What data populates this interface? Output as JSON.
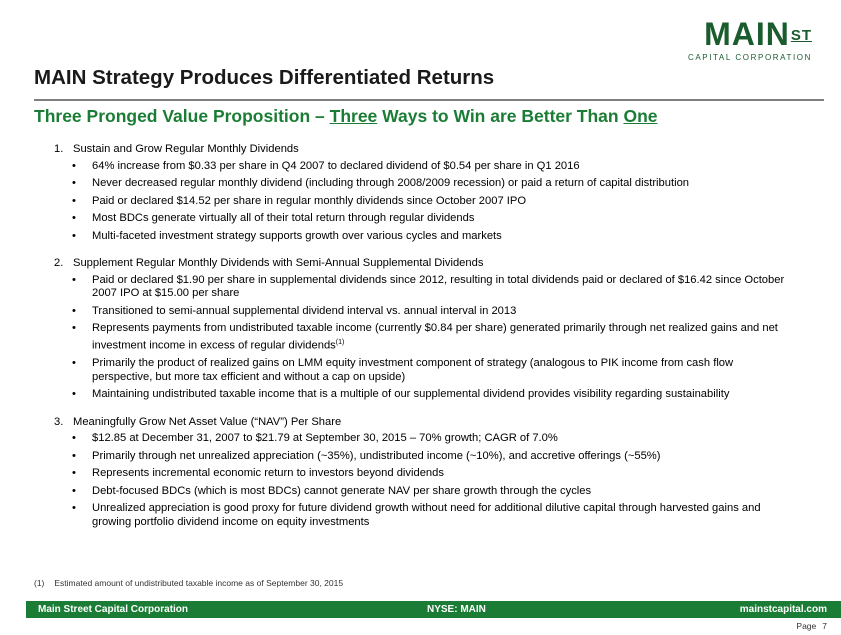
{
  "logo": {
    "main": "MAIN",
    "st": "ST",
    "sub": "CAPITAL CORPORATION"
  },
  "title": "MAIN Strategy Produces Differentiated Returns",
  "subtitle": {
    "part1": "Three Pronged Value Proposition – ",
    "emph1": "Three",
    "part2": " Ways to Win are Better Than ",
    "emph2": "One"
  },
  "sections": [
    {
      "num": "1.",
      "heading": "Sustain and Grow Regular Monthly Dividends",
      "bullets": [
        "64% increase from $0.33 per share in Q4 2007 to declared dividend of $0.54 per share in Q1 2016",
        "Never decreased regular monthly dividend (including through 2008/2009 recession) or paid a return of capital distribution",
        "Paid or declared $14.52 per share in regular monthly dividends since October 2007 IPO",
        "Most BDCs generate virtually all of their total return through regular dividends",
        "Multi-faceted investment strategy supports growth over various cycles and markets"
      ]
    },
    {
      "num": "2.",
      "heading": "Supplement Regular Monthly Dividends with Semi-Annual Supplemental Dividends",
      "bullets": [
        "Paid or declared $1.90 per share in supplemental dividends since 2012, resulting in total dividends paid or declared of $16.42 since October 2007 IPO at $15.00 per share",
        "Transitioned to semi-annual supplemental dividend interval vs. annual interval in 2013",
        "Represents payments from undistributed taxable income (currently $0.84 per share) generated primarily through net realized gains and net investment income in excess of regular dividends",
        "Primarily the product of realized gains on LMM equity investment component of strategy (analogous to PIK income from cash flow perspective, but more tax efficient and without a cap on upside)",
        "Maintaining undistributed taxable income that is a multiple of our supplemental dividend provides visibility regarding sustainability"
      ],
      "bullet3_sup": "(1)"
    },
    {
      "num": "3.",
      "heading": "Meaningfully Grow Net Asset Value (“NAV”) Per Share",
      "bullets": [
        "$12.85 at December 31, 2007 to $21.79 at September 30, 2015 – 70% growth; CAGR of 7.0%",
        "Primarily through net unrealized appreciation (~35%), undistributed income (~10%), and accretive offerings (~55%)",
        "Represents incremental economic return to investors beyond dividends",
        "Debt-focused BDCs (which is most BDCs) cannot generate NAV per share growth through the cycles",
        "Unrealized appreciation is good proxy for future dividend growth without need for additional dilutive capital through harvested gains and growing portfolio dividend income on equity investments"
      ]
    }
  ],
  "bullet_glyph": "•",
  "footnote": {
    "num": "(1)",
    "text": "Estimated amount of undistributed taxable income as of September 30, 2015"
  },
  "footer": {
    "left": "Main Street Capital Corporation",
    "center": "NYSE: MAIN",
    "right": "mainstcapital.com"
  },
  "page": {
    "label": "Page",
    "number": "7"
  },
  "colors": {
    "brand_green": "#1b7d35",
    "logo_green": "#1a5c2e",
    "rule_gray": "#7f7f7f"
  }
}
